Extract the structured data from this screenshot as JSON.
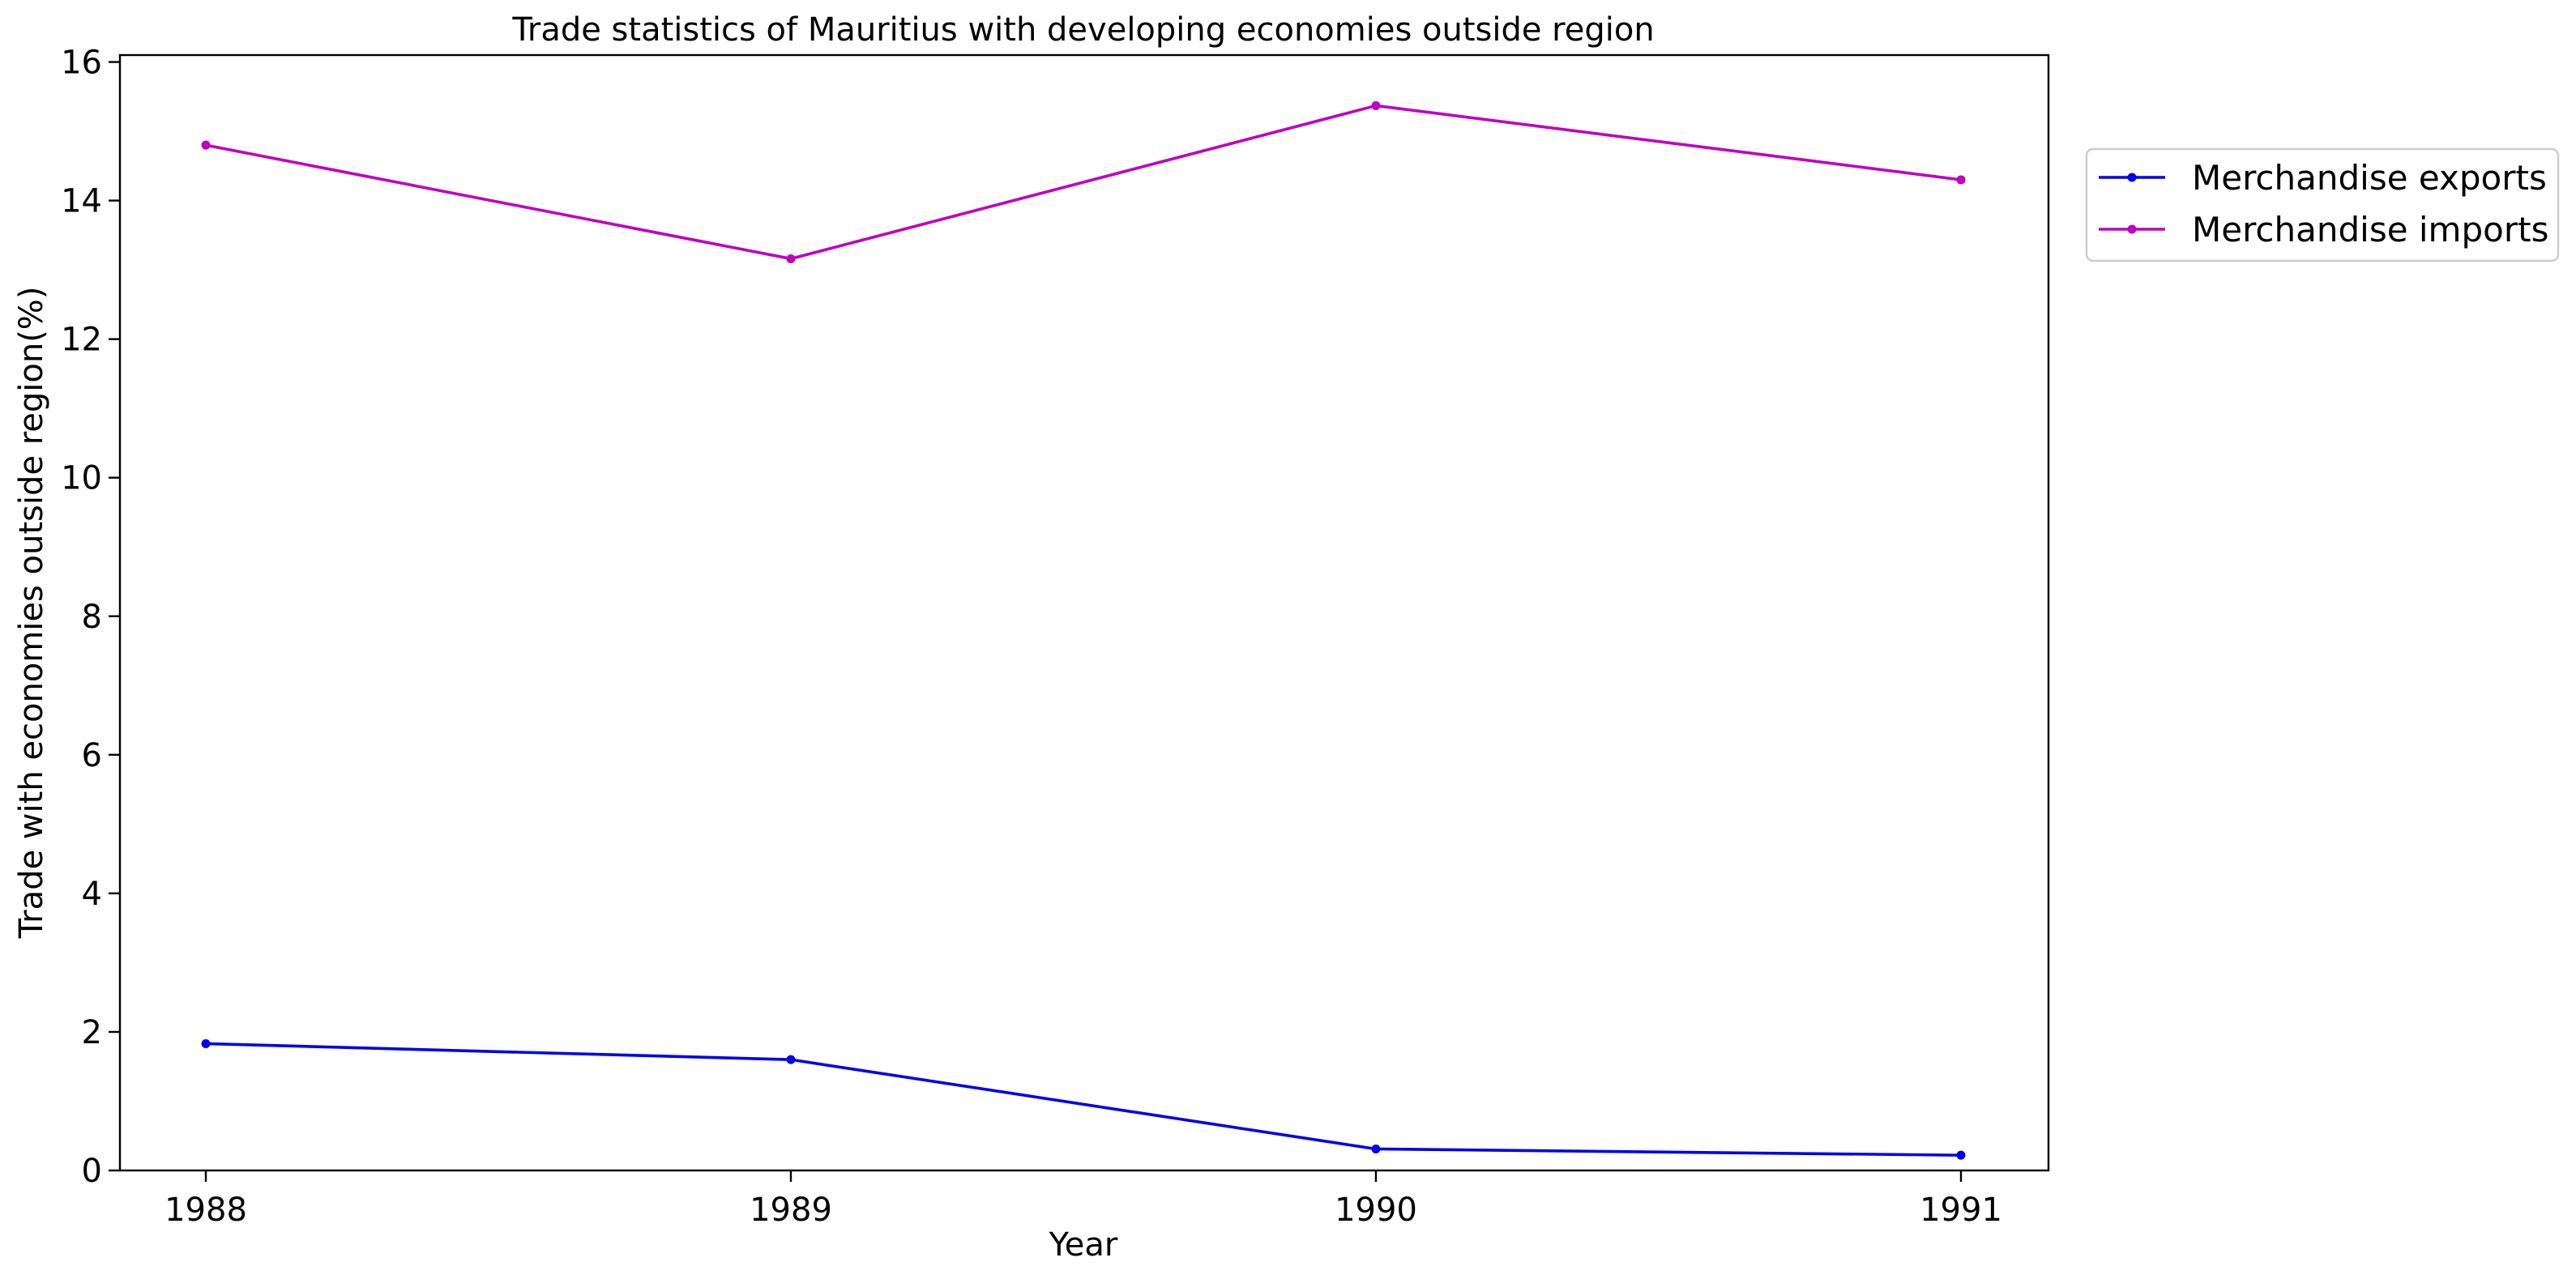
{
  "chart_data": {
    "type": "line",
    "title": "Trade statistics of Mauritius with developing economies outside region",
    "xlabel": "Year",
    "ylabel": "Trade with economies outside region(%)",
    "x": [
      1988,
      1989,
      1990,
      1991
    ],
    "x_tick_labels": [
      "1988",
      "1989",
      "1990",
      "1991"
    ],
    "y_ticks": [
      0,
      2,
      4,
      6,
      8,
      10,
      12,
      14,
      16
    ],
    "y_tick_labels": [
      "0",
      "2",
      "4",
      "6",
      "8",
      "10",
      "12",
      "14",
      "16"
    ],
    "ylim": [
      0,
      16.1
    ],
    "grid": false,
    "legend_position": "outside right, top",
    "series": [
      {
        "name": "Merchandise exports",
        "color": "#0000ee",
        "values": [
          1.83,
          1.6,
          0.31,
          0.22
        ]
      },
      {
        "name": "Merchandise imports",
        "color": "#bf00bf",
        "values": [
          14.8,
          13.16,
          15.37,
          14.3
        ]
      }
    ]
  }
}
